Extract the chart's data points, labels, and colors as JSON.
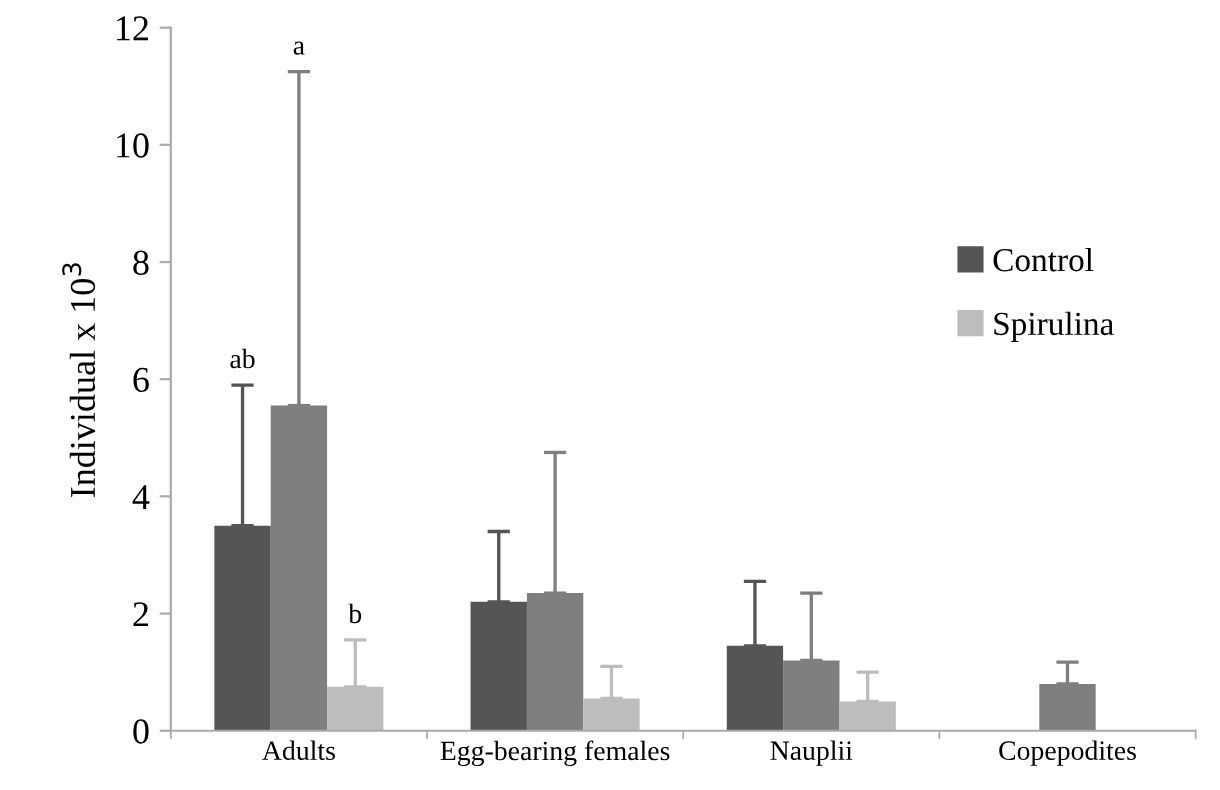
{
  "chart_data": {
    "type": "bar",
    "ylabel": "Individual x 10$^{3}$",
    "categories": [
      "Adults",
      "Egg-bearing females",
      "Nauplii",
      "Copepodites"
    ],
    "series": [
      {
        "name": "Control",
        "color": "#555555",
        "values": [
          3.5,
          2.2,
          1.45,
          null
        ],
        "errors": [
          [
            3.5,
            5.9
          ],
          [
            2.2,
            3.4
          ],
          [
            1.45,
            2.55
          ],
          null
        ]
      },
      {
        "color": "#7f7f7f",
        "values": [
          5.55,
          2.35,
          1.2,
          0.8
        ],
        "errors": [
          [
            5.55,
            11.25
          ],
          [
            2.35,
            4.75
          ],
          [
            1.2,
            2.35
          ],
          [
            0.8,
            1.17
          ]
        ]
      },
      {
        "name": "Spirulina",
        "color": "#bdbdbd",
        "values": [
          0.75,
          0.55,
          0.5,
          null
        ],
        "errors": [
          [
            0.75,
            1.55
          ],
          [
            0.55,
            1.1
          ],
          [
            0.5,
            1.0
          ],
          null
        ]
      }
    ],
    "annotations": [
      "ab",
      "a",
      "b"
    ],
    "ylim": [
      0,
      12
    ],
    "yticks": [
      0,
      2,
      4,
      6,
      8,
      10,
      12
    ],
    "grid": false,
    "legend": "right"
  }
}
